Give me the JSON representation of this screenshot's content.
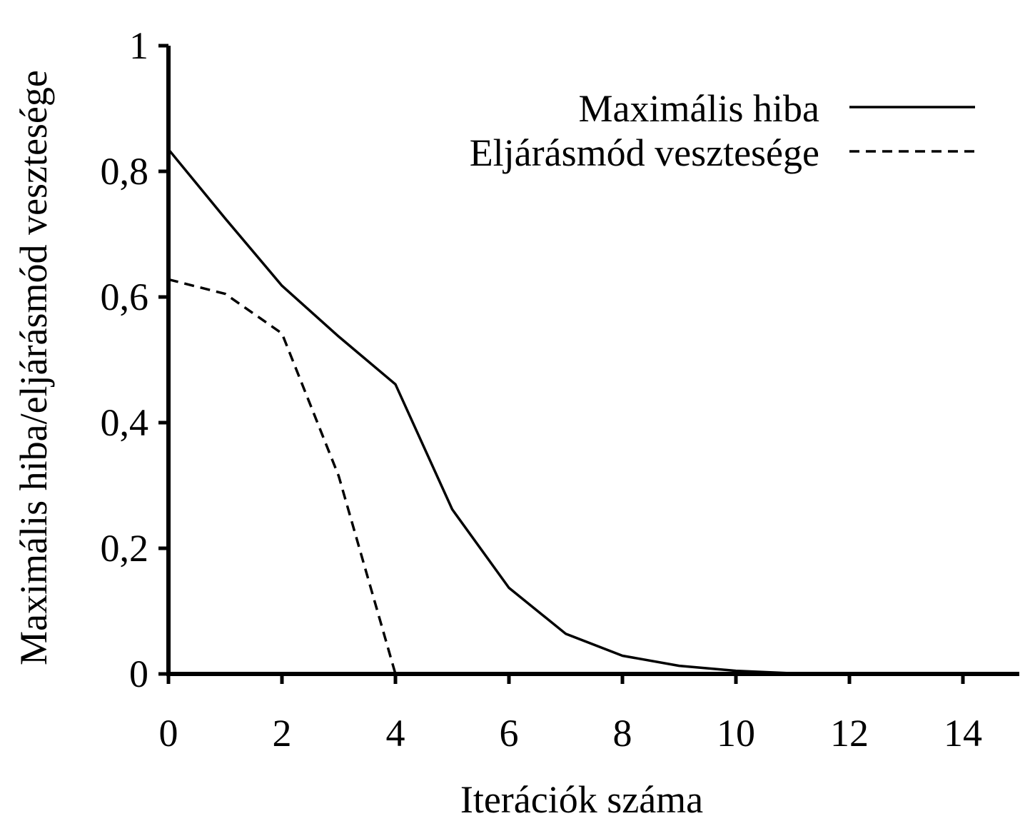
{
  "chart_data": {
    "type": "line",
    "xlabel": "Iterációk száma",
    "ylabel": "Maximális hiba/eljárásmód vesztesége",
    "xlim": [
      0,
      15
    ],
    "ylim": [
      0,
      1
    ],
    "xticks": [
      0,
      2,
      4,
      6,
      8,
      10,
      12,
      14
    ],
    "xtick_labels": [
      "0",
      "2",
      "4",
      "6",
      "8",
      "10",
      "12",
      "14"
    ],
    "yticks": [
      0,
      0.2,
      0.4,
      0.6,
      0.8,
      1
    ],
    "ytick_labels": [
      "0",
      "0,2",
      "0,4",
      "0,6",
      "0,8",
      "1"
    ],
    "grid": false,
    "legend_position": "top-right",
    "series": [
      {
        "name": "Maximális hiba",
        "style": "solid",
        "color": "#000000",
        "x": [
          0,
          1,
          2,
          3,
          4,
          5,
          6,
          7,
          8,
          9,
          10,
          11,
          12,
          13,
          14
        ],
        "y": [
          0.835,
          0.725,
          0.618,
          0.537,
          0.461,
          0.262,
          0.137,
          0.064,
          0.029,
          0.013,
          0.005,
          0.001,
          0,
          0,
          0
        ]
      },
      {
        "name": "Eljárásmód vesztesége",
        "style": "dashed",
        "color": "#000000",
        "x": [
          0,
          1,
          2,
          3,
          4
        ],
        "y": [
          0.628,
          0.605,
          0.542,
          0.315,
          0
        ]
      }
    ]
  }
}
